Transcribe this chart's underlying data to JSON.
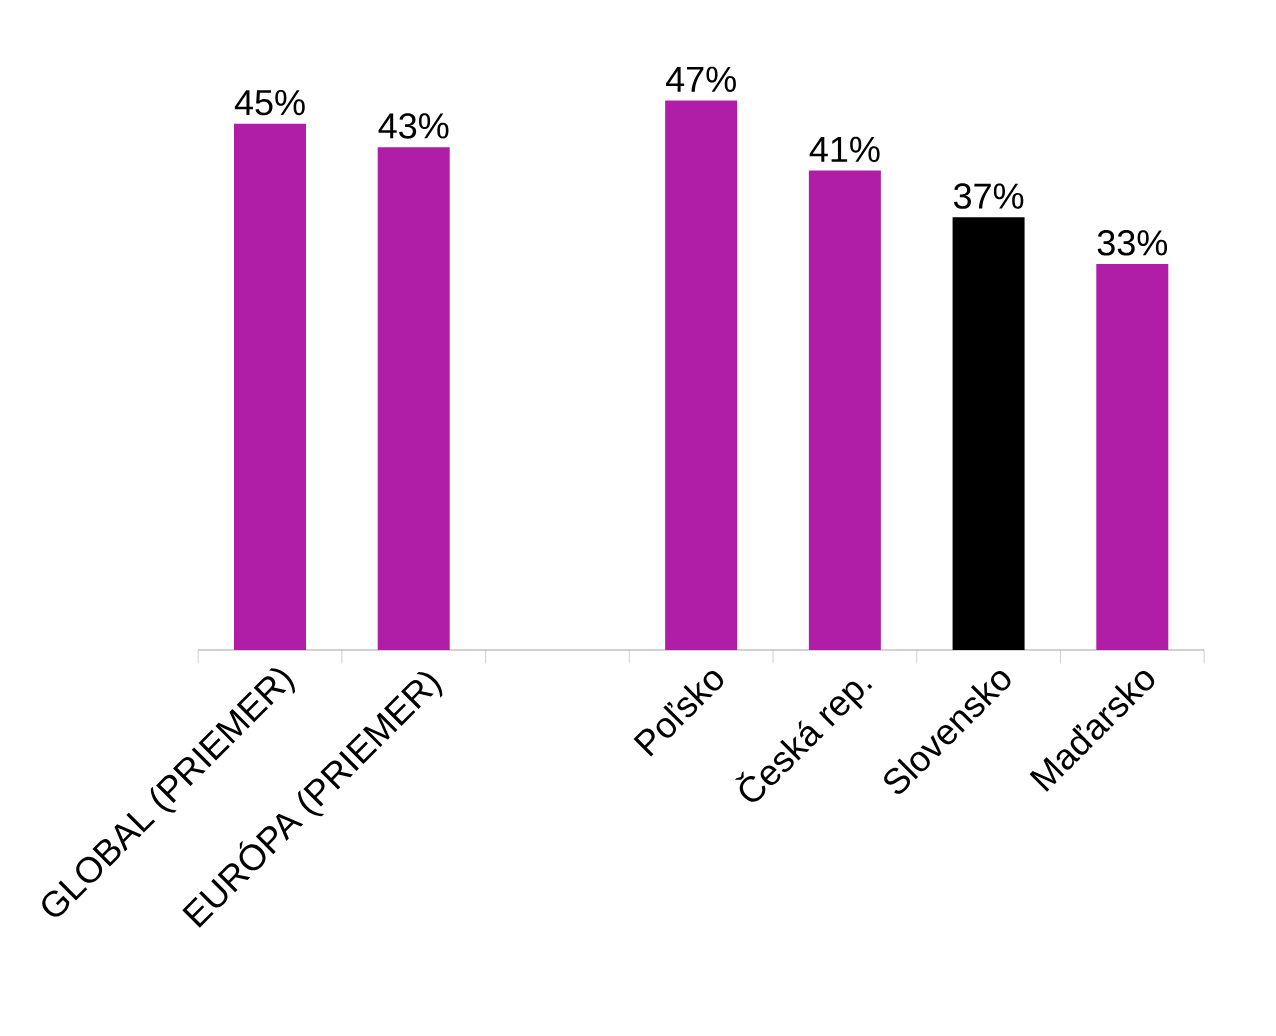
{
  "chart_data": {
    "type": "bar",
    "categories": [
      "GLOBAL (PRIEMER)",
      "EURÓPA (PRIEMER)",
      null,
      "Poľsko",
      "Česká rep.",
      "Slovensko",
      "Maďarsko"
    ],
    "values": [
      45,
      43,
      null,
      47,
      41,
      37,
      33
    ],
    "value_labels": [
      "45%",
      "43%",
      null,
      "47%",
      "41%",
      "37%",
      "33%"
    ],
    "colors": [
      "#b01ea8",
      "#b01ea8",
      "#b01ea8",
      "#b01ea8",
      "#b01ea8",
      "#000000",
      "#b01ea8"
    ],
    "tick_labels": "x"
  }
}
